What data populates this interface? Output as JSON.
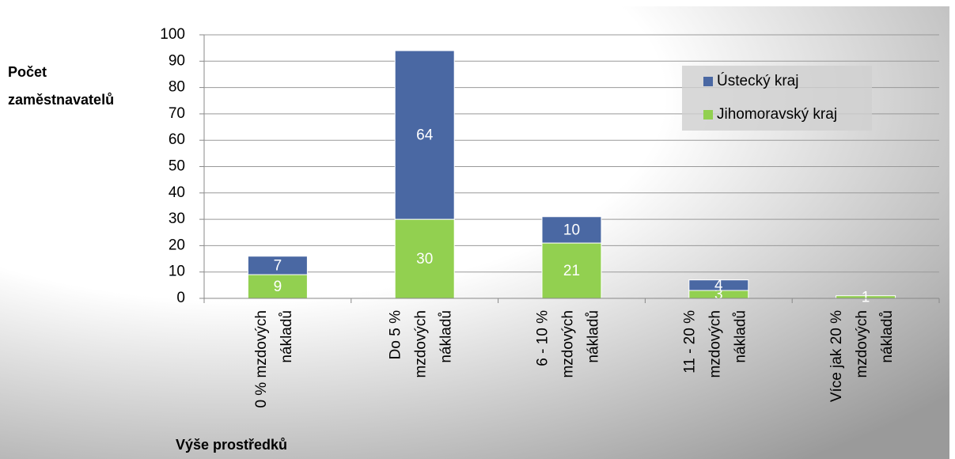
{
  "chart_data": {
    "type": "stacked_bar",
    "y_label": [
      "Počet",
      "zaměstnavatelů"
    ],
    "x_label": "Výše prostředků",
    "categories": [
      [
        "0 % mzdových",
        "nákladů"
      ],
      [
        "Do  5 %",
        "mzdových",
        "nákladů"
      ],
      [
        "6 - 10 %",
        "mzdových",
        "nákladů"
      ],
      [
        "11 - 20 %",
        "mzdových",
        "nákladů"
      ],
      [
        "Více jak 20 %",
        "mzdových",
        "nákladů"
      ]
    ],
    "series": [
      {
        "name": "Jihomoravský kraj",
        "color": "#92d050",
        "values": [
          9,
          30,
          21,
          3,
          1
        ]
      },
      {
        "name": "Ústecký kraj",
        "color": "#4a68a3",
        "values": [
          7,
          64,
          10,
          4,
          null
        ]
      }
    ],
    "legend_order": [
      1,
      0
    ],
    "ylim": [
      0,
      100
    ],
    "yticks": [
      0,
      10,
      20,
      30,
      40,
      50,
      60,
      70,
      80,
      90,
      100
    ],
    "grid": true
  }
}
